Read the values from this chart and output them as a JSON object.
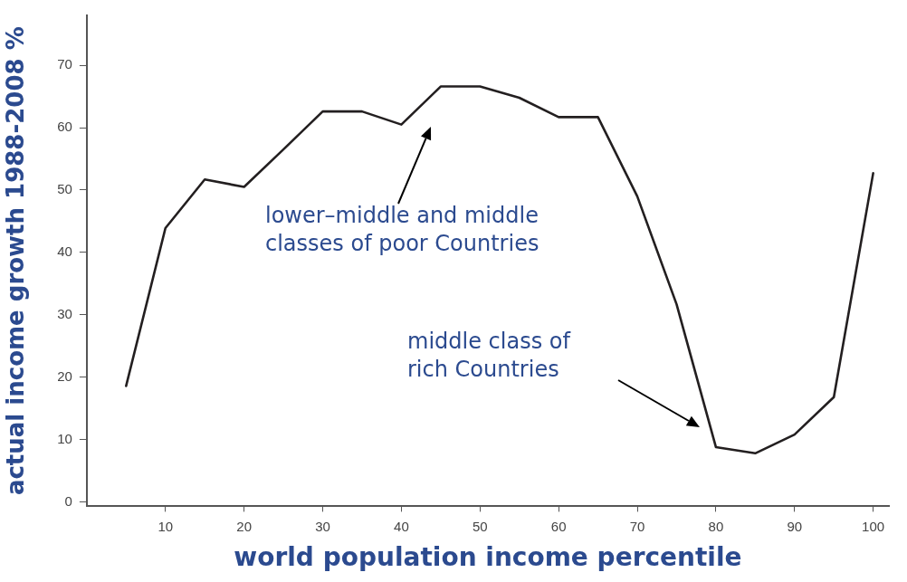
{
  "chart_data": {
    "type": "line",
    "xlabel": "world population income percentile",
    "ylabel": "actual income growth 1988-2008 %",
    "x": [
      5,
      10,
      15,
      20,
      25,
      30,
      35,
      40,
      45,
      50,
      55,
      60,
      65,
      70,
      75,
      80,
      85,
      90,
      95,
      100
    ],
    "series": [
      {
        "color": "#231f20",
        "values": [
          18.6,
          43.9,
          51.7,
          50.5,
          56.5,
          62.6,
          62.6,
          60.5,
          66.6,
          66.6,
          64.8,
          61.7,
          61.7,
          49,
          31.7,
          8.8,
          7.8,
          10.8,
          16.8,
          52.7
        ]
      }
    ],
    "xlim": [
      0,
      102
    ],
    "xticks": [
      10,
      20,
      30,
      40,
      50,
      60,
      70,
      80,
      90,
      100
    ],
    "ylim": [
      -0.7,
      78
    ],
    "yticks": [
      0,
      10,
      20,
      30,
      40,
      50,
      60,
      70
    ],
    "grid": false,
    "legend": false,
    "marker": "none",
    "line_style": "solid",
    "annotations": [
      "lower–middle and middle\nclasses of poor Countries",
      "middle class of\nrich Countries"
    ]
  }
}
